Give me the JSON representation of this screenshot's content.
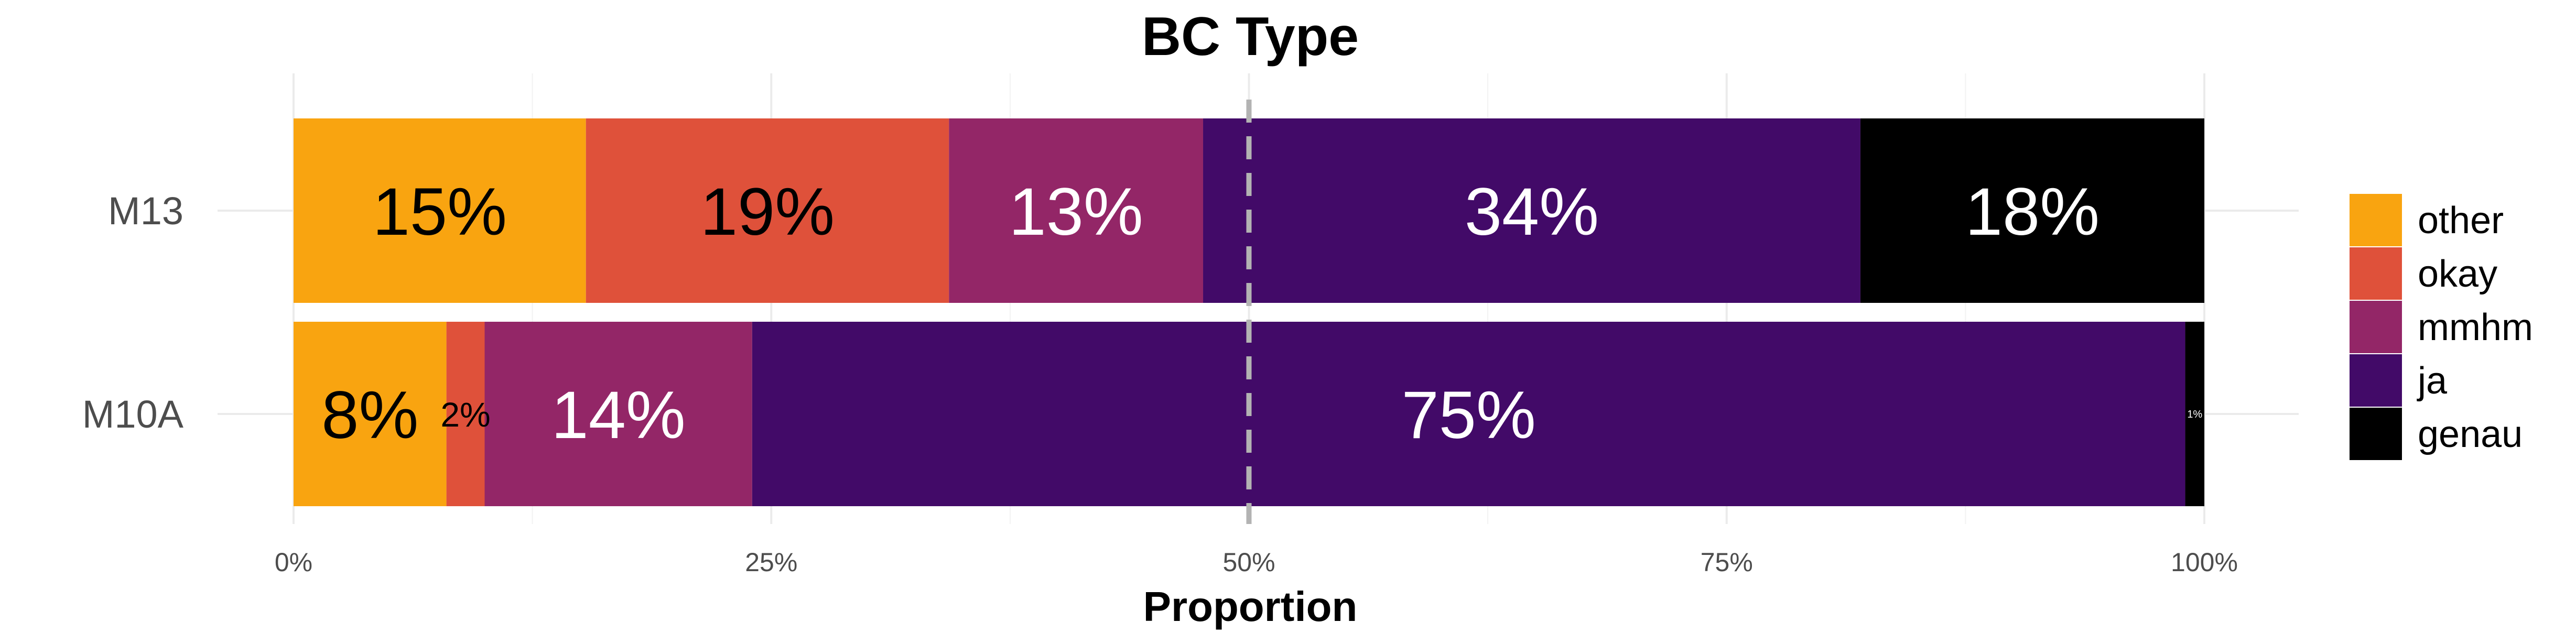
{
  "chart_data": {
    "type": "bar",
    "orientation": "horizontal",
    "stacked": true,
    "title": "BC Type",
    "xlabel": "Proportion",
    "ylabel": "",
    "xlim": [
      0,
      1
    ],
    "x_ticks": [
      0,
      0.25,
      0.5,
      0.75,
      1
    ],
    "x_tick_labels": [
      "0%",
      "25%",
      "50%",
      "75%",
      "100%"
    ],
    "reference_line": {
      "x": 0.5,
      "style": "dashed",
      "color": "#b3b3b3"
    },
    "grid": true,
    "legend_position": "right",
    "categories": [
      "M13",
      "M10A"
    ],
    "series": [
      {
        "name": "other",
        "color": "#F9A410",
        "text_color": "#000000",
        "values": [
          0.153,
          0.08
        ],
        "labels": [
          "15%",
          "8%"
        ]
      },
      {
        "name": "okay",
        "color": "#DF513A",
        "text_color": "#000000",
        "values": [
          0.19,
          0.02
        ],
        "labels": [
          "19%",
          "2%"
        ]
      },
      {
        "name": "mmhm",
        "color": "#932667",
        "text_color": "#ffffff",
        "values": [
          0.133,
          0.14
        ],
        "labels": [
          "13%",
          "14%"
        ]
      },
      {
        "name": "ja",
        "color": "#420A68",
        "text_color": "#ffffff",
        "values": [
          0.344,
          0.75
        ],
        "labels": [
          "34%",
          "75%"
        ]
      },
      {
        "name": "genau",
        "color": "#000000",
        "text_color": "#ffffff",
        "values": [
          0.18,
          0.01
        ],
        "labels": [
          "18%",
          "1%"
        ]
      }
    ]
  }
}
